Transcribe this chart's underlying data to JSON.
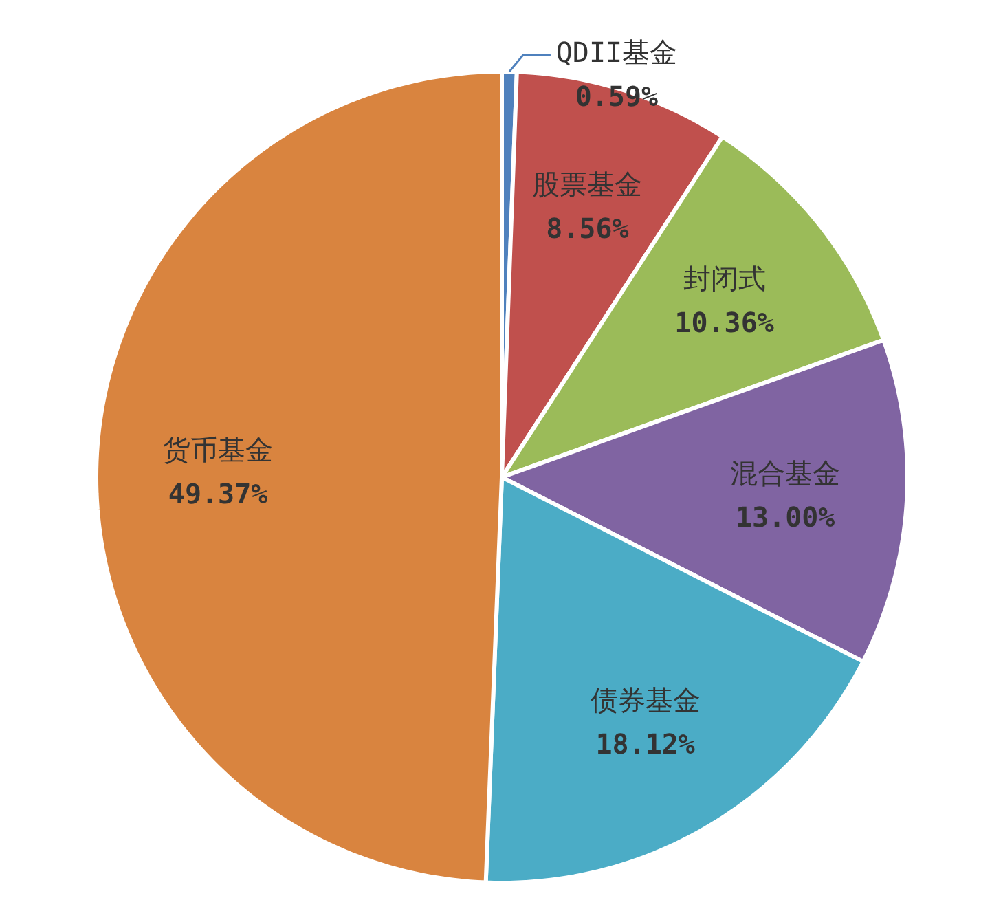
{
  "chart_data": {
    "type": "pie",
    "categories": [
      "QDII基金",
      "股票基金",
      "封闭式",
      "混合基金",
      "债券基金",
      "货币基金"
    ],
    "values": [
      0.59,
      8.56,
      10.36,
      13.0,
      18.12,
      49.37
    ],
    "value_labels": [
      "0.59%",
      "8.56%",
      "10.36%",
      "13.00%",
      "18.12%",
      "49.37%"
    ],
    "colors": [
      "#4f81bd",
      "#c0504d",
      "#9bbb59",
      "#8064a2",
      "#4bacc6",
      "#d9843f"
    ]
  }
}
